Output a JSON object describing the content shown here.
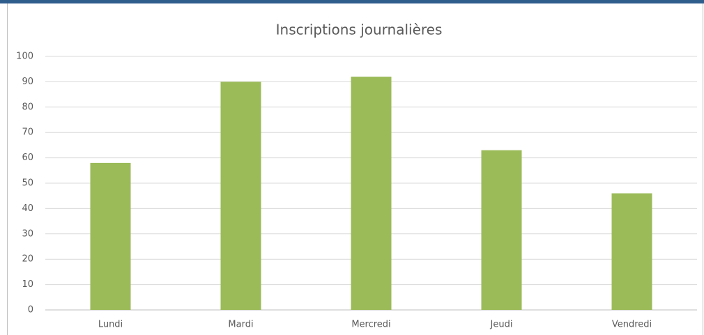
{
  "chart_data": {
    "type": "bar",
    "title": "Inscriptions journalières",
    "categories": [
      "Lundi",
      "Mardi",
      "Mercredi",
      "Jeudi",
      "Vendredi"
    ],
    "values": [
      58,
      90,
      92,
      63,
      46
    ],
    "color": "#9bbb59",
    "ylim": [
      0,
      100
    ],
    "yticks": [
      0,
      10,
      20,
      30,
      40,
      50,
      60,
      70,
      80,
      90,
      100
    ],
    "grid": true
  }
}
